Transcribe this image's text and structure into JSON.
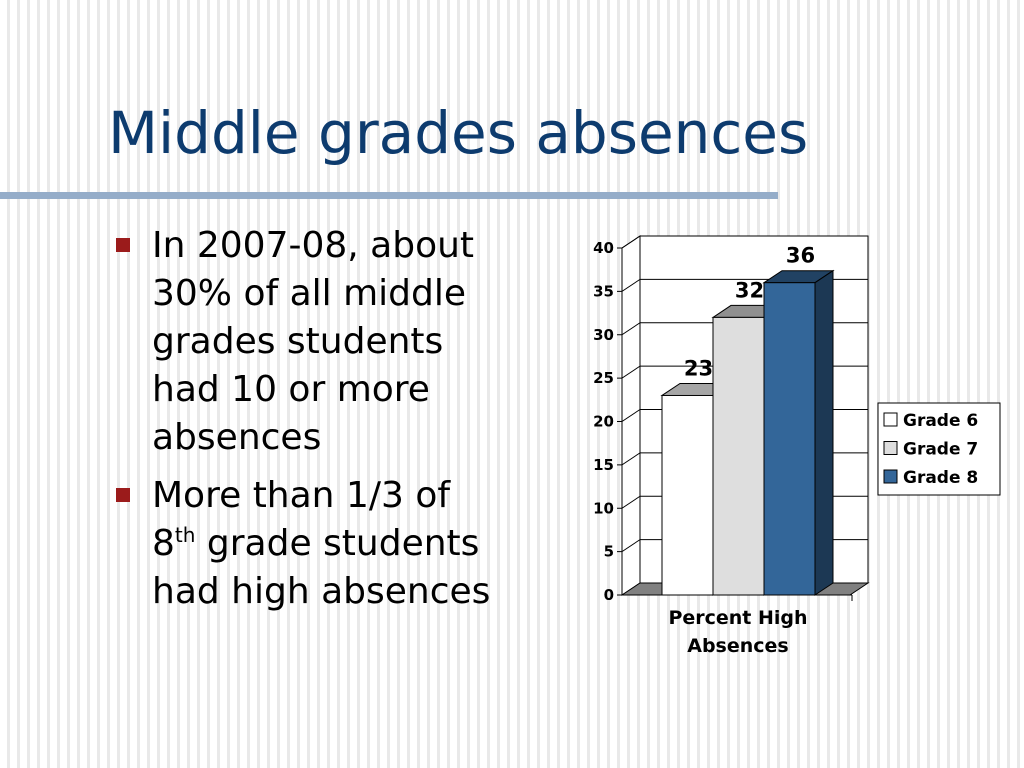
{
  "slide": {
    "title": "Middle grades absences",
    "bullets": [
      {
        "text": "In 2007-08, about\n30% of all middle\ngrades students\nhad 10 or more\nabsences"
      },
      {
        "pre": "More than 1/3 of\n8",
        "sup": "th",
        "post": " grade students\nhad high absences"
      }
    ]
  },
  "colors": {
    "title": "#0d3b6e",
    "bullet_marker": "#9b1b1b",
    "grade6": "#ffffff",
    "grade7": "#dedede",
    "grade8": "#336699"
  },
  "chart_data": {
    "type": "bar",
    "categories": [
      "Percent High Absences"
    ],
    "category_label_lines": [
      "Percent High",
      "Absences"
    ],
    "series": [
      {
        "name": "Grade 6",
        "values": [
          23
        ],
        "color": "#ffffff"
      },
      {
        "name": "Grade 7",
        "values": [
          32
        ],
        "color": "#dedede"
      },
      {
        "name": "Grade 8",
        "values": [
          36
        ],
        "color": "#336699"
      }
    ],
    "ylim": [
      0,
      40
    ],
    "yticks": [
      0,
      5,
      10,
      15,
      20,
      25,
      30,
      35,
      40
    ],
    "grid": true,
    "legend": "right",
    "data_labels": true,
    "style": "3d"
  }
}
